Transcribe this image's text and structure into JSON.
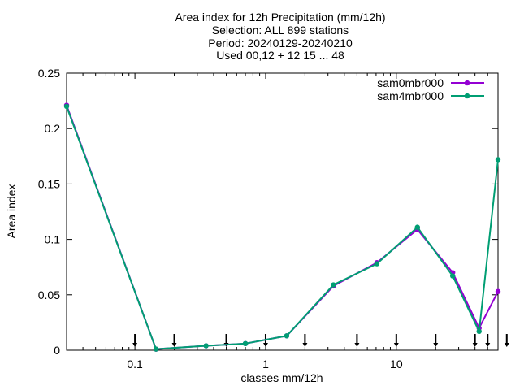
{
  "chart_data": {
    "type": "line",
    "title_lines": [
      "Area index  for 12h Precipitation (mm/12h)",
      "Selection: ALL    899 stations",
      "Period: 20240129-20240210",
      "Used 00,12 + 12 15 ... 48"
    ],
    "xlabel": "classes mm/12h",
    "ylabel": "Area index",
    "x_scale": "log",
    "xlim": [
      0.03,
      60
    ],
    "ylim": [
      0,
      0.25
    ],
    "x_ticks": [
      {
        "value": 0.1,
        "label": "0.1"
      },
      {
        "value": 1,
        "label": "1"
      },
      {
        "value": 10,
        "label": "10"
      }
    ],
    "y_ticks": [
      {
        "value": 0,
        "label": "0"
      },
      {
        "value": 0.05,
        "label": "0.05"
      },
      {
        "value": 0.1,
        "label": "0.1"
      },
      {
        "value": 0.15,
        "label": "0.15"
      },
      {
        "value": 0.2,
        "label": "0.2"
      },
      {
        "value": 0.25,
        "label": "0.25"
      }
    ],
    "class_markers": [
      0.1,
      0.2,
      0.5,
      1,
      2,
      5,
      10,
      20,
      40,
      50,
      70
    ],
    "legend_position": "top-right",
    "grid": false,
    "series": [
      {
        "name": "sam0mbr000",
        "color": "#9400d3",
        "x": [
          0.03,
          0.145,
          0.35,
          0.7,
          1.45,
          3.3,
          7.1,
          14.5,
          27,
          43,
          60
        ],
        "y": [
          0.221,
          0.001,
          0.004,
          0.006,
          0.013,
          0.058,
          0.079,
          0.109,
          0.07,
          0.02,
          0.053
        ]
      },
      {
        "name": "sam4mbr000",
        "color": "#009e73",
        "x": [
          0.03,
          0.145,
          0.35,
          0.7,
          1.45,
          3.3,
          7.1,
          14.5,
          27,
          43,
          60
        ],
        "y": [
          0.22,
          0.001,
          0.004,
          0.006,
          0.013,
          0.059,
          0.078,
          0.111,
          0.067,
          0.017,
          0.172
        ]
      }
    ]
  }
}
